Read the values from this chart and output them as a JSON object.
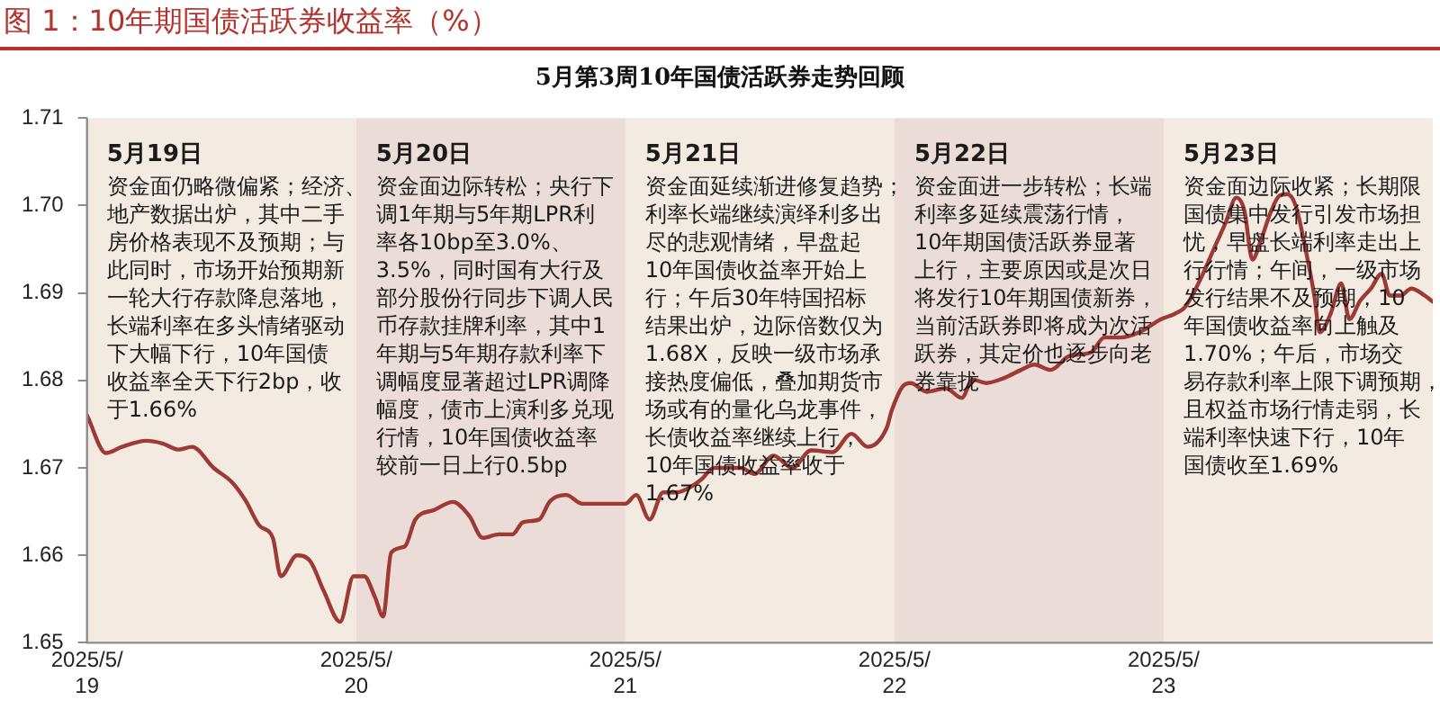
{
  "chart_data": {
    "type": "line",
    "title": "图 1：10年期国债活跃券收益率（%）",
    "subtitle": "5月第3周10年国债活跃券走势回顾",
    "x": [
      "2025-05-19T00:00",
      "2025-05-19T01:41",
      "2025-05-19T03:07",
      "2025-05-19T05:17",
      "2025-05-19T06:43",
      "2025-05-19T08:10",
      "2025-05-19T09:22",
      "2025-05-19T11:17",
      "2025-05-19T12:58",
      "2025-05-19T14:10",
      "2025-05-19T15:22",
      "2025-05-19T16:34",
      "2025-05-19T17:17",
      "2025-05-19T18:43",
      "2025-05-19T19:55",
      "2025-05-19T21:07",
      "2025-05-19T22:34",
      "2025-05-19T23:46",
      "2025-05-20T00:43",
      "2025-05-20T01:41",
      "2025-05-20T02:24",
      "2025-05-20T03:07",
      "2025-05-20T04:19",
      "2025-05-20T05:17",
      "2025-05-20T06:58",
      "2025-05-20T08:38",
      "2025-05-20T10:05",
      "2025-05-20T11:17",
      "2025-05-20T12:43",
      "2025-05-20T13:55",
      "2025-05-20T14:53",
      "2025-05-20T16:19",
      "2025-05-20T17:17",
      "2025-05-20T18:43",
      "2025-05-20T20:10",
      "2025-05-21T00:00",
      "2025-05-21T00:58",
      "2025-05-21T02:10",
      "2025-05-21T03:22",
      "2025-05-21T04:34",
      "2025-05-21T05:31",
      "2025-05-21T06:43",
      "2025-05-21T07:55",
      "2025-05-21T10:19",
      "2025-05-21T11:31",
      "2025-05-21T13:12",
      "2025-05-21T14:53",
      "2025-05-21T16:34",
      "2025-05-21T18:29",
      "2025-05-21T20:10",
      "2025-05-21T21:36",
      "2025-05-21T23:17",
      "2025-05-21T23:46",
      "2025-05-22T00:43",
      "2025-05-22T01:26",
      "2025-05-22T02:53",
      "2025-05-22T04:34",
      "2025-05-22T06:00",
      "2025-05-22T06:58",
      "2025-05-22T08:10",
      "2025-05-22T09:50",
      "2025-05-22T11:17",
      "2025-05-22T12:29",
      "2025-05-22T13:55",
      "2025-05-22T15:36",
      "2025-05-22T17:31",
      "2025-05-22T18:43",
      "2025-05-22T20:10",
      "2025-05-22T21:50",
      "2025-05-22T23:46",
      "2025-05-23T00:58",
      "2025-05-23T01:55",
      "2025-05-23T03:22",
      "2025-05-23T04:34",
      "2025-05-23T05:31",
      "2025-05-23T06:29",
      "2025-05-23T07:12",
      "2025-05-23T07:55",
      "2025-05-23T08:38",
      "2025-05-23T09:36",
      "2025-05-23T10:19",
      "2025-05-23T11:02",
      "2025-05-23T11:46",
      "2025-05-23T12:43",
      "2025-05-23T13:26",
      "2025-05-23T13:55",
      "2025-05-23T14:53",
      "2025-05-23T15:50",
      "2025-05-23T16:34",
      "2025-05-23T17:31",
      "2025-05-23T18:29",
      "2025-05-23T19:26",
      "2025-05-23T20:10",
      "2025-05-23T21:07",
      "2025-05-23T22:05",
      "2025-05-23T23:17",
      "2025-05-24T00:00"
    ],
    "series": [
      {
        "color": "#9e3a33",
        "values": [
          1.676,
          1.6717,
          1.6724,
          1.6731,
          1.6728,
          1.6721,
          1.6724,
          1.67,
          1.6683,
          1.6662,
          1.6634,
          1.662,
          1.6576,
          1.66,
          1.6593,
          1.6559,
          1.6524,
          1.6576,
          1.6576,
          1.6552,
          1.653,
          1.6603,
          1.661,
          1.6641,
          1.6652,
          1.6661,
          1.6645,
          1.662,
          1.6624,
          1.6624,
          1.6638,
          1.6641,
          1.6662,
          1.6669,
          1.6659,
          1.6659,
          1.6669,
          1.6641,
          1.6672,
          1.6672,
          1.6676,
          1.6686,
          1.67,
          1.67,
          1.6693,
          1.6714,
          1.67,
          1.672,
          1.6718,
          1.6739,
          1.6724,
          1.6745,
          1.6766,
          1.6793,
          1.6797,
          1.6787,
          1.6791,
          1.678,
          1.6801,
          1.6797,
          1.6803,
          1.6812,
          1.6818,
          1.6812,
          1.6828,
          1.6832,
          1.6849,
          1.6849,
          1.6855,
          1.687,
          1.6876,
          1.6884,
          1.6918,
          1.6953,
          1.698,
          1.7009,
          1.6994,
          1.6938,
          1.6959,
          1.6994,
          1.7011,
          1.7013,
          1.7,
          1.6946,
          1.6897,
          1.6855,
          1.6876,
          1.6911,
          1.687,
          1.6891,
          1.6905,
          1.6922,
          1.6897,
          1.6897,
          1.6905,
          1.6897,
          1.689
        ]
      }
    ],
    "xlim": [
      "2025-05-19",
      "2025-05-24"
    ],
    "xticks": [
      {
        "value": "2025-05-19",
        "label": "2025/5/19"
      },
      {
        "value": "2025-05-20",
        "label": "2025/5/20"
      },
      {
        "value": "2025-05-21",
        "label": "2025/5/21"
      },
      {
        "value": "2025-05-22",
        "label": "2025/5/22"
      },
      {
        "value": "2025-05-23",
        "label": "2025/5/23"
      }
    ],
    "ylim": [
      1.65,
      1.71
    ],
    "yticks": [
      1.65,
      1.66,
      1.67,
      1.68,
      1.69,
      {
        "value": 1.7,
        "label": "1.70"
      },
      1.71
    ],
    "bands": [
      {
        "axis": "x",
        "from": "2025-05-19",
        "to": "2025-05-20",
        "color": "#f3ebe1",
        "label": "5月19日"
      },
      {
        "axis": "x",
        "from": "2025-05-20",
        "to": "2025-05-21",
        "color": "#ecdcd7",
        "label": "5月20日"
      },
      {
        "axis": "x",
        "from": "2025-05-21",
        "to": "2025-05-22",
        "color": "#f3ebe1",
        "label": "5月21日"
      },
      {
        "axis": "x",
        "from": "2025-05-22",
        "to": "2025-05-23",
        "color": "#ecdcd7",
        "label": "5月22日"
      },
      {
        "axis": "x",
        "from": "2025-05-23",
        "to": "2025-05-24",
        "color": "#f3ebe1",
        "label": "5月23日"
      }
    ],
    "annotations": [
      "资金面仍略微偏紧；经济、地产数据出炉，其中二手房价格表现不及预期；与此同时，市场开始预期新一轮大行存款降息落地，长端利率在多头情绪驱动下大幅下行，10年国债收益率全天下行2bp，收于1.66%",
      "资金面边际转松；央行下调1年期与5年期LPR利率各10bp至3.0%、3.5%，同时国有大行及部分股份行同步下调人民币存款挂牌利率，其中1年期与5年期存款利率下调幅度显著超过LPR调降幅度，债市上演利多兑现行情，10年国债收益率较前一日上行0.5bp",
      "资金面延续渐进修复趋势；利率长端继续演绎利多出尽的悲观情绪，早盘起10年国债收益率开始上行；午后30年特国招标结果出炉，边际倍数仅为1.68X，反映一级市场承接热度偏低，叠加期货市场或有的量化乌龙事件，长债收益率继续上行，10年国债收益率收于1.67%",
      "资金面进一步转松；长端利率多延续震荡行情，10年期国债活跃券显著上行，主要原因或是次日将发行10年期国债新券，当前活跃券即将成为次活跃券，其定价也逐步向老券靠拢",
      "资金面边际收紧；长期限国债集中发行引发市场担忧，早盘长端利率走出上行行情；午间，一级市场发行结果不及预期，10年国债收益率向上触及1.70%；午后，市场交易存款利率上限下调预期，且权益市场行情走弱，长端利率快速下行，10年国债收至1.69%"
    ],
    "grid": false,
    "legend": false,
    "marker": "none",
    "line_style": "solid"
  }
}
